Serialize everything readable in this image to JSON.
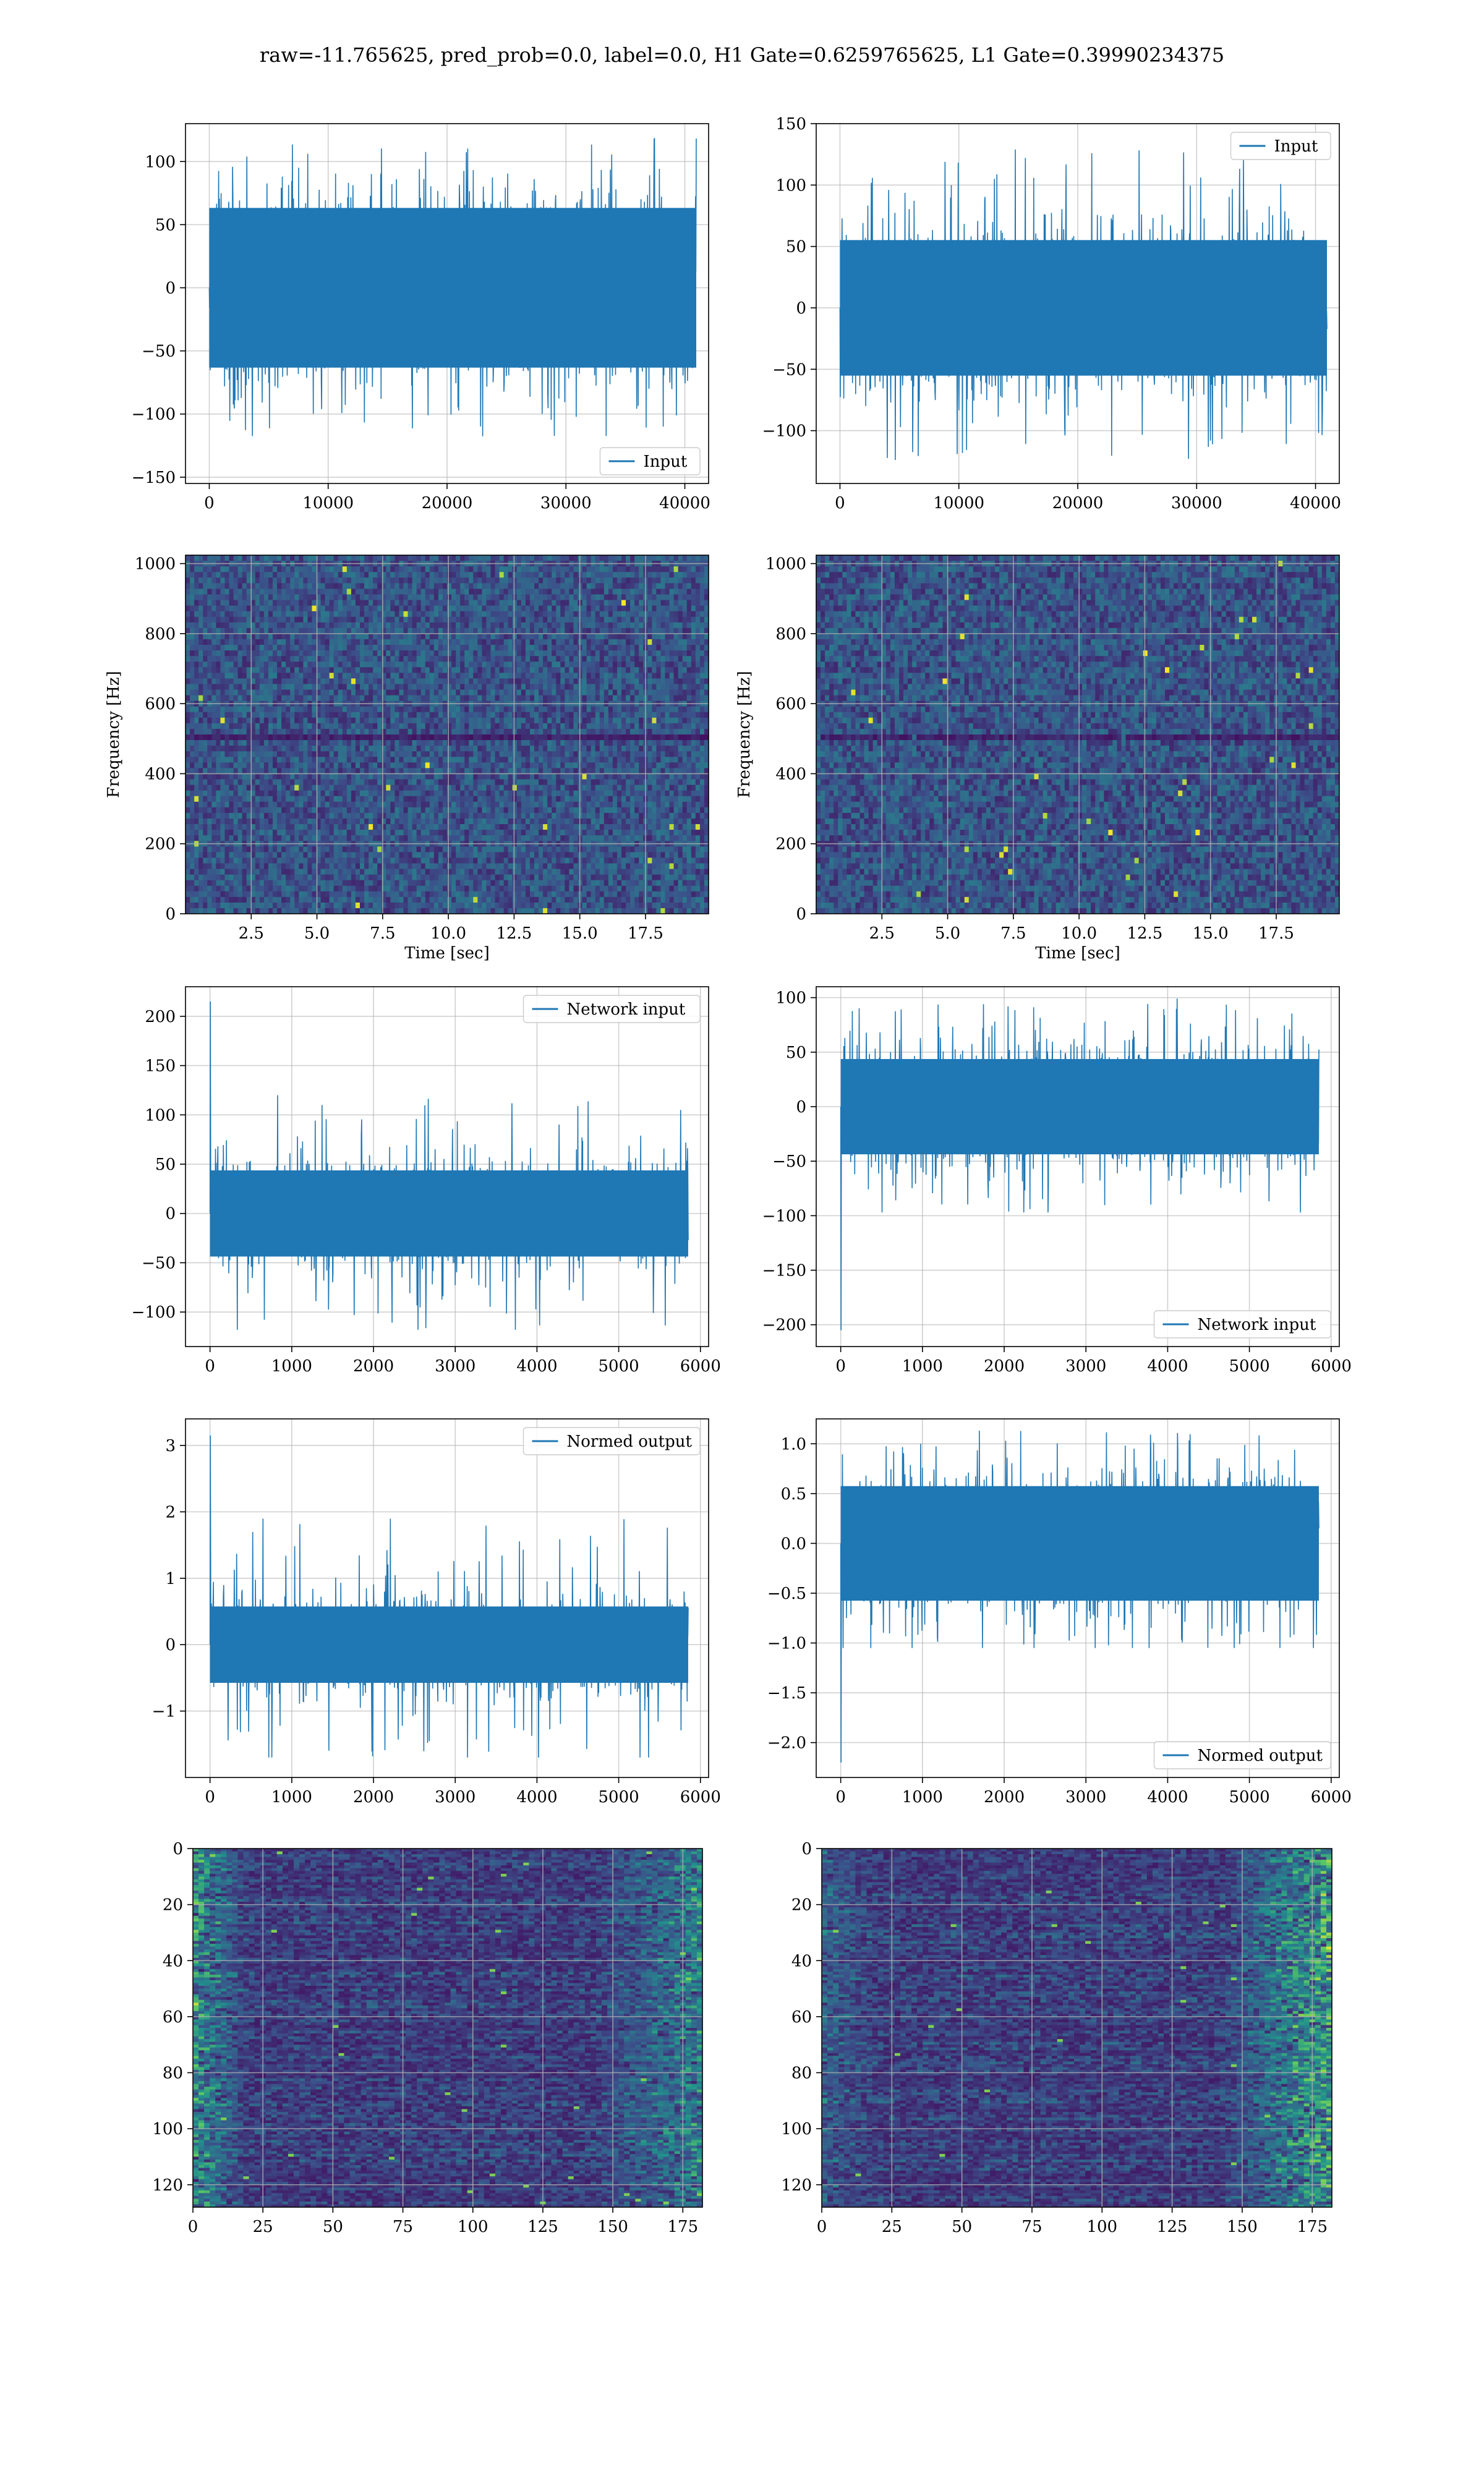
{
  "figure": {
    "suptitle": "raw=-11.765625, pred_prob=0.0, label=0.0, H1 Gate=0.6259765625, L1 Gate=0.39990234375"
  },
  "chart_data": [
    {
      "type": "line",
      "title": "",
      "series": [
        {
          "name": "Input",
          "description": "dense noise signal, core amplitude about ±65, peaks about ±120"
        }
      ],
      "xlim": [
        -2000,
        42000
      ],
      "ylim": [
        -155,
        130
      ],
      "xticks": [
        0,
        10000,
        20000,
        30000,
        40000
      ],
      "yticks": [
        -150,
        -100,
        -50,
        0,
        50,
        100
      ],
      "n_points": 40960,
      "legend": "lower-right",
      "grid": true
    },
    {
      "type": "line",
      "title": "",
      "series": [
        {
          "name": "Input",
          "description": "dense noise signal, core amplitude about ±55, peaks about ±130"
        }
      ],
      "xlim": [
        -2000,
        42000
      ],
      "ylim": [
        -143,
        150
      ],
      "xticks": [
        0,
        10000,
        20000,
        30000,
        40000
      ],
      "yticks": [
        -100,
        -50,
        0,
        50,
        100,
        150
      ],
      "n_points": 40960,
      "legend": "upper-right",
      "grid": true
    },
    {
      "type": "heatmap",
      "title": "",
      "xlabel": "Time [sec]",
      "ylabel": "Frequency [Hz]",
      "xlim": [
        0,
        19.9
      ],
      "ylim": [
        0,
        1024
      ],
      "xticks": [
        2.5,
        5.0,
        7.5,
        10.0,
        12.5,
        15.0,
        17.5
      ],
      "yticks": [
        0,
        200,
        400,
        600,
        800,
        1000
      ],
      "colormap": "viridis",
      "grid": true
    },
    {
      "type": "heatmap",
      "title": "",
      "xlabel": "Time [sec]",
      "ylabel": "Frequency [Hz]",
      "xlim": [
        0,
        19.9
      ],
      "ylim": [
        0,
        1024
      ],
      "xticks": [
        2.5,
        5.0,
        7.5,
        10.0,
        12.5,
        15.0,
        17.5
      ],
      "yticks": [
        0,
        200,
        400,
        600,
        800,
        1000
      ],
      "colormap": "viridis",
      "grid": true
    },
    {
      "type": "line",
      "title": "",
      "series": [
        {
          "name": "Network input",
          "description": "noise signal, core about ±45, initial spike to 215"
        }
      ],
      "xlim": [
        -300,
        6100
      ],
      "ylim": [
        -135,
        230
      ],
      "xticks": [
        0,
        1000,
        2000,
        3000,
        4000,
        5000,
        6000
      ],
      "yticks": [
        -100,
        -50,
        0,
        50,
        100,
        150,
        200
      ],
      "n_points": 5850,
      "legend": "upper-right",
      "grid": true
    },
    {
      "type": "line",
      "title": "",
      "series": [
        {
          "name": "Network input",
          "description": "noise signal, core about ±45, initial spike to -205"
        }
      ],
      "xlim": [
        -300,
        6100
      ],
      "ylim": [
        -220,
        110
      ],
      "xticks": [
        0,
        1000,
        2000,
        3000,
        4000,
        5000,
        6000
      ],
      "yticks": [
        -200,
        -150,
        -100,
        -50,
        0,
        50,
        100
      ],
      "n_points": 5850,
      "legend": "lower-right",
      "grid": true
    },
    {
      "type": "line",
      "title": "",
      "series": [
        {
          "name": "Normed output",
          "description": "noise signal, core about ±0.6, initial spike to 3.15"
        }
      ],
      "xlim": [
        -300,
        6100
      ],
      "ylim": [
        -2.0,
        3.4
      ],
      "xticks": [
        0,
        1000,
        2000,
        3000,
        4000,
        5000,
        6000
      ],
      "yticks": [
        -1,
        0,
        1,
        2,
        3
      ],
      "n_points": 5850,
      "legend": "upper-right",
      "grid": true
    },
    {
      "type": "line",
      "title": "",
      "series": [
        {
          "name": "Normed output",
          "description": "noise signal, core about ±0.6, initial spike to -2.2"
        }
      ],
      "xlim": [
        -300,
        6100
      ],
      "ylim": [
        -2.35,
        1.25
      ],
      "xticks": [
        0,
        1000,
        2000,
        3000,
        4000,
        5000,
        6000
      ],
      "yticks": [
        -2.0,
        -1.5,
        -1.0,
        -0.5,
        0.0,
        0.5,
        1.0
      ],
      "n_points": 5850,
      "legend": "lower-right",
      "grid": true
    },
    {
      "type": "heatmap",
      "title": "",
      "xlim": [
        0,
        182
      ],
      "ylim": [
        128,
        0
      ],
      "xticks": [
        0,
        25,
        50,
        75,
        100,
        125,
        150,
        175
      ],
      "yticks": [
        0,
        20,
        40,
        60,
        80,
        100,
        120
      ],
      "colormap": "viridis",
      "grid": true
    },
    {
      "type": "heatmap",
      "title": "",
      "xlim": [
        0,
        182
      ],
      "ylim": [
        128,
        0
      ],
      "xticks": [
        0,
        25,
        50,
        75,
        100,
        125,
        150,
        175
      ],
      "yticks": [
        0,
        20,
        40,
        60,
        80,
        100,
        120
      ],
      "colormap": "viridis",
      "grid": true
    }
  ]
}
